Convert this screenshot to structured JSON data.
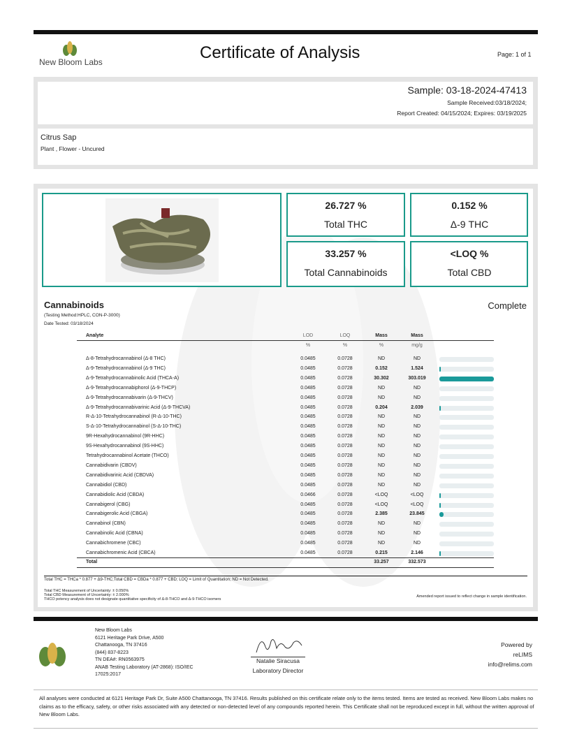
{
  "header": {
    "company": "New Bloom Labs",
    "title": "Certificate of Analysis",
    "page": "Page: 1 of 1"
  },
  "sample": {
    "id": "Sample: 03-18-2024-47413",
    "received": "Sample Received:03/18/2024;",
    "report": "Report Created: 04/15/2024; Expires: 03/19/2025"
  },
  "product": {
    "name": "Citrus Sap",
    "type": "Plant , Flower - Uncured"
  },
  "summary": [
    {
      "value": "26.727 %",
      "label": "Total THC"
    },
    {
      "value": "0.152 %",
      "label": "Δ-9 THC"
    },
    {
      "value": "33.257 %",
      "label": "Total Cannabinoids"
    },
    {
      "value": "<LOQ %",
      "label": "Total CBD"
    }
  ],
  "cannabinoids": {
    "title": "Cannabinoids",
    "status": "Complete",
    "method": "(Testing Method:HPLC, CON-P-3000)",
    "date": "Date Tested: 03/18/2024",
    "columns": [
      "Analyte",
      "LOD",
      "LOQ",
      "Mass",
      "Mass"
    ],
    "units": [
      "%",
      "%",
      "%",
      "mg/g"
    ],
    "rows": [
      [
        "Δ-8-Tetrahydrocannabinol (Δ-8 THC)",
        "0.0485",
        "0.0728",
        "ND",
        "ND"
      ],
      [
        "Δ-9-Tetrahydrocannabinol (Δ-9 THC)",
        "0.0485",
        "0.0728",
        "0.152",
        "1.524"
      ],
      [
        "Δ-9-Tetrahydrocannabinolic Acid (THCA-A)",
        "0.0485",
        "0.0728",
        "30.302",
        "303.019"
      ],
      [
        "Δ-9-Tetrahydrocannabiphorol (Δ-9-THCP)",
        "0.0485",
        "0.0728",
        "ND",
        "ND"
      ],
      [
        "Δ-9-Tetrahydrocannabivarin (Δ-9-THCV)",
        "0.0485",
        "0.0728",
        "ND",
        "ND"
      ],
      [
        "Δ-9-Tetrahydrocannabivarinic Acid (Δ-9-THCVA)",
        "0.0485",
        "0.0728",
        "0.204",
        "2.039"
      ],
      [
        "R-Δ-10-Tetrahydrocannabinol (R-Δ-10-THC)",
        "0.0485",
        "0.0728",
        "ND",
        "ND"
      ],
      [
        "S-Δ-10-Tetrahydrocannabinol (S-Δ-10-THC)",
        "0.0485",
        "0.0728",
        "ND",
        "ND"
      ],
      [
        "9R-Hexahydrocannabinol (9R-HHC)",
        "0.0485",
        "0.0728",
        "ND",
        "ND"
      ],
      [
        "9S-Hexahydrocannabinol (9S-HHC)",
        "0.0485",
        "0.0728",
        "ND",
        "ND"
      ],
      [
        "Tetrahydrocannabinol Acetate (THCO)",
        "0.0485",
        "0.0728",
        "ND",
        "ND"
      ],
      [
        "Cannabidivarin (CBDV)",
        "0.0485",
        "0.0728",
        "ND",
        "ND"
      ],
      [
        "Cannabidivarinic Acid (CBDVA)",
        "0.0485",
        "0.0728",
        "ND",
        "ND"
      ],
      [
        "Cannabidiol (CBD)",
        "0.0485",
        "0.0728",
        "ND",
        "ND"
      ],
      [
        "Cannabidiolic Acid (CBDA)",
        "0.0466",
        "0.0728",
        "<LOQ",
        "<LOQ"
      ],
      [
        "Cannabigerol (CBG)",
        "0.0485",
        "0.0728",
        "<LOQ",
        "<LOQ"
      ],
      [
        "Cannabigerolic Acid (CBGA)",
        "0.0485",
        "0.0728",
        "2.385",
        "23.845"
      ],
      [
        "Cannabinol (CBN)",
        "0.0485",
        "0.0728",
        "ND",
        "ND"
      ],
      [
        "Cannabinolic Acid (CBNA)",
        "0.0485",
        "0.0728",
        "ND",
        "ND"
      ],
      [
        "Cannabichromene (CBC)",
        "0.0485",
        "0.0728",
        "ND",
        "ND"
      ],
      [
        "Cannabichromenic Acid (CBCA)",
        "0.0485",
        "0.0728",
        "0.215",
        "2.146"
      ]
    ],
    "total": [
      "Total",
      "33.257",
      "332.573"
    ]
  },
  "notes": {
    "definitions": "Total THC = THCa * 0.877 + Δ9-THC;Total CBD = CBDa * 0.877 + CBD; LOQ = Limit of Quantitation; ND = Not Detected.",
    "uncertainty": [
      "Total THC Measurement of Uncertainty: ± 0.050%",
      "Total CBD Measurement of Uncertainty: ± 2.000%",
      "THCO potency analysis does not designate quantitative specificity of Δ-8-THCO and Δ-9-THCO isomers"
    ],
    "amended": "Amended report issued to reflect change in sample identification."
  },
  "footer": {
    "address": [
      "New Bloom Labs",
      "6121 Heritage Park Drive, A500",
      "Chattanooga, TN 37416",
      "(844) 837-8223",
      "TN DEA#: RN0563975",
      "ANAB Testing Laboratory (AT-2868): ISO/IEC",
      "17025:2017"
    ],
    "signer": "Natalie Siracusa",
    "role": "Laboratory Director",
    "powered": [
      "Powered by",
      "reLIMS",
      "info@relims.com"
    ],
    "disclaimer": "All analyses were conducted at 6121 Heritage Park Dr, Suite A500 Chattanooga, TN 37416. Results published on this certificate relate only to the items tested. Items are tested as received. New Bloom Labs makes no claims as to the efficacy, safety, or other risks associated with any detected or non-detected level of any compounds reported herein. This Certificate shall not be reproduced except in full, without the written approval of New Bloom Labs."
  }
}
